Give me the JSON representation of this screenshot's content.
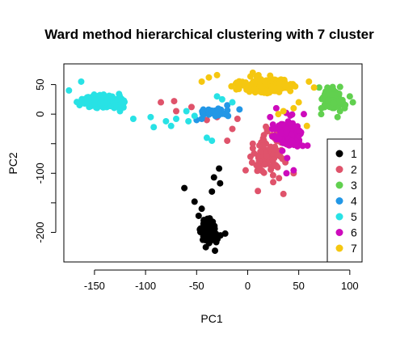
{
  "chart_data": {
    "type": "scatter",
    "title": "Ward method hierarchical clustering with 7 cluster",
    "xlabel": "PC1",
    "ylabel": "PC2",
    "xlim": [
      -180,
      112
    ],
    "ylim": [
      -250,
      85
    ],
    "x_ticks": [
      -150,
      -100,
      -50,
      0,
      50,
      100
    ],
    "x_tick_labels": [
      "-150",
      "-100",
      "-50",
      "0",
      "50",
      "100"
    ],
    "y_ticks": [
      -200,
      -100,
      0,
      50
    ],
    "y_tick_labels": [
      "-200",
      "-100",
      "0",
      "50"
    ],
    "legend_position": "right-inside",
    "grid": false,
    "series": [
      {
        "name": "1",
        "color": "#000000",
        "cx": -38,
        "cy": -197,
        "sx": 7,
        "sy": 14,
        "n": 90,
        "points": [
          [
            -28,
            -92
          ],
          [
            -33,
            -107
          ],
          [
            -27,
            -117
          ],
          [
            -35,
            -131
          ],
          [
            -52,
            -148
          ],
          [
            -45,
            -160
          ],
          [
            -48,
            -172
          ],
          [
            -62,
            -125
          ],
          [
            -41,
            -225
          ],
          [
            -32,
            -231
          ],
          [
            -22,
            -202
          ]
        ]
      },
      {
        "name": "2",
        "color": "#DF536B",
        "cx": 20,
        "cy": -70,
        "sx": 14,
        "sy": 30,
        "n": 90,
        "points": [
          [
            -85,
            20
          ],
          [
            -72,
            22
          ],
          [
            -55,
            12
          ],
          [
            -70,
            5
          ],
          [
            -40,
            -10
          ],
          [
            -30,
            -5
          ],
          [
            -10,
            -8
          ],
          [
            -20,
            -45
          ],
          [
            -2,
            -95
          ],
          [
            10,
            -130
          ],
          [
            25,
            -115
          ],
          [
            45,
            -100
          ],
          [
            35,
            -135
          ],
          [
            5,
            -50
          ],
          [
            -15,
            -25
          ]
        ]
      },
      {
        "name": "3",
        "color": "#61D04F",
        "cx": 82,
        "cy": 26,
        "sx": 9,
        "sy": 14,
        "n": 120,
        "points": [
          [
            95,
            10
          ],
          [
            88,
            -5
          ],
          [
            72,
            0
          ],
          [
            100,
            30
          ],
          [
            70,
            45
          ],
          [
            103,
            20
          ]
        ]
      },
      {
        "name": "4",
        "color": "#2297E6",
        "cx": -32,
        "cy": 3,
        "sx": 11,
        "sy": 5,
        "n": 35,
        "points": [
          [
            -45,
            -8
          ],
          [
            -20,
            15
          ],
          [
            -8,
            8
          ],
          [
            -50,
            -10
          ]
        ]
      },
      {
        "name": "5",
        "color": "#28E2E5",
        "cx": -140,
        "cy": 22,
        "sx": 17,
        "sy": 8,
        "n": 260,
        "points": [
          [
            -95,
            -5
          ],
          [
            -80,
            -12
          ],
          [
            -70,
            -8
          ],
          [
            -60,
            5
          ],
          [
            -52,
            -3
          ],
          [
            -40,
            -40
          ],
          [
            -35,
            -45
          ],
          [
            -30,
            30
          ],
          [
            -25,
            25
          ],
          [
            -15,
            20
          ],
          [
            -58,
            -12
          ],
          [
            -75,
            -20
          ],
          [
            -92,
            -22
          ],
          [
            -112,
            -8
          ],
          [
            -125,
            5
          ],
          [
            -163,
            55
          ],
          [
            -175,
            40
          ]
        ]
      },
      {
        "name": "6",
        "color": "#CD0BBC",
        "cx": 40,
        "cy": -35,
        "sx": 10,
        "sy": 22,
        "n": 140,
        "points": [
          [
            22,
            -5
          ],
          [
            28,
            10
          ],
          [
            55,
            0
          ],
          [
            45,
            -95
          ],
          [
            38,
            -100
          ]
        ]
      },
      {
        "name": "7",
        "color": "#F5C710",
        "cx": 18,
        "cy": 48,
        "sx": 22,
        "sy": 10,
        "n": 230,
        "points": [
          [
            -45,
            55
          ],
          [
            -38,
            62
          ],
          [
            -30,
            66
          ],
          [
            60,
            55
          ],
          [
            65,
            45
          ],
          [
            50,
            20
          ],
          [
            45,
            10
          ],
          [
            35,
            5
          ],
          [
            30,
            0
          ],
          [
            58,
            -20
          ],
          [
            22,
            65
          ],
          [
            5,
            70
          ]
        ]
      }
    ]
  }
}
